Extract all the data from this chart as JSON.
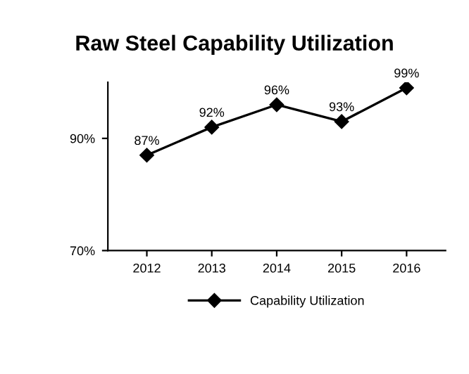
{
  "chart_data": {
    "type": "line",
    "title": "Raw Steel Capability Utilization",
    "categories": [
      "2012",
      "2013",
      "2014",
      "2015",
      "2016"
    ],
    "series": [
      {
        "name": "Capability Utilization",
        "color": "#000000",
        "values": [
          87,
          92,
          96,
          93,
          99
        ],
        "value_labels": [
          "87%",
          "92%",
          "96%",
          "93%",
          "99%"
        ]
      }
    ],
    "ylim": [
      70,
      100
    ],
    "yticks": [
      {
        "value": 70,
        "label": "70%"
      },
      {
        "value": 90,
        "label": "90%"
      }
    ],
    "marker": "diamond",
    "line_style": "solid",
    "grid": false,
    "legend": "bottom"
  }
}
